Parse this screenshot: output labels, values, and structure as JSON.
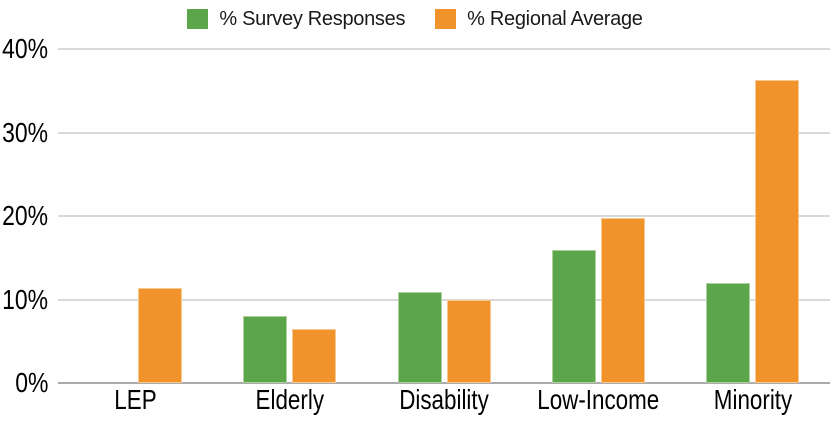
{
  "chart_data": {
    "type": "bar",
    "title": "",
    "xlabel": "",
    "ylabel": "",
    "categories": [
      "LEP",
      "Elderly",
      "Disability",
      "Low-Income",
      "Minority"
    ],
    "series": [
      {
        "name": "% Survey Responses",
        "color": "#5BA54A",
        "border_color": "#ADD09D",
        "values": [
          0,
          8,
          10.9,
          15.9,
          12
        ]
      },
      {
        "name": "% Regional Average",
        "color": "#F0932A",
        "border_color": "#F8C890",
        "values": [
          11.4,
          6.5,
          9.9,
          19.8,
          36.3
        ]
      }
    ],
    "ylim": [
      0,
      40
    ],
    "ytick_values": [
      0,
      10,
      20,
      30,
      40
    ],
    "yticks": [
      "0%",
      "10%",
      "20%",
      "30%",
      "40%"
    ],
    "grid": true,
    "legend_position": "top"
  },
  "colors": {
    "background": "#ffffff",
    "gridline": "#d9d9d9",
    "axis_line": "#ababab",
    "text": "#000000"
  }
}
